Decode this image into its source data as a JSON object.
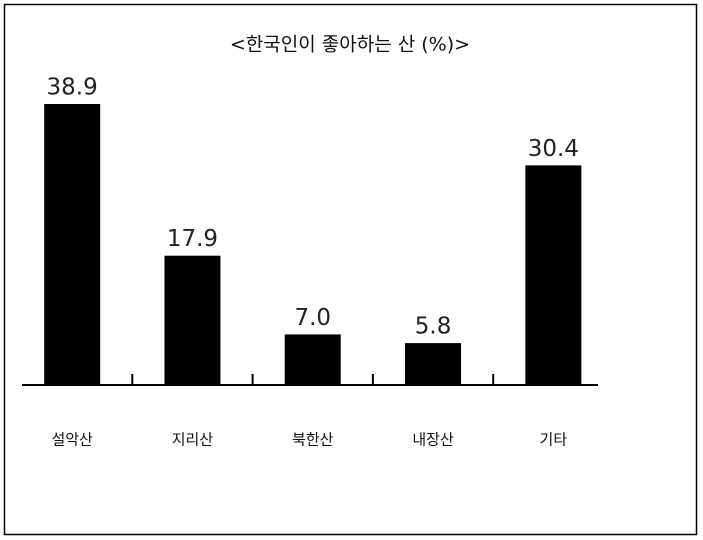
{
  "chart_data": {
    "type": "bar",
    "title": "<한국인이 좋아하는 산 (%)>",
    "categories": [
      "설악산",
      "지리산",
      "북한산",
      "내장산",
      "기타"
    ],
    "values": [
      38.9,
      17.9,
      7.0,
      5.8,
      30.4
    ],
    "value_labels": [
      "38.9",
      "17.9",
      "7.0",
      "5.8",
      "30.4"
    ],
    "color": "#000000"
  }
}
